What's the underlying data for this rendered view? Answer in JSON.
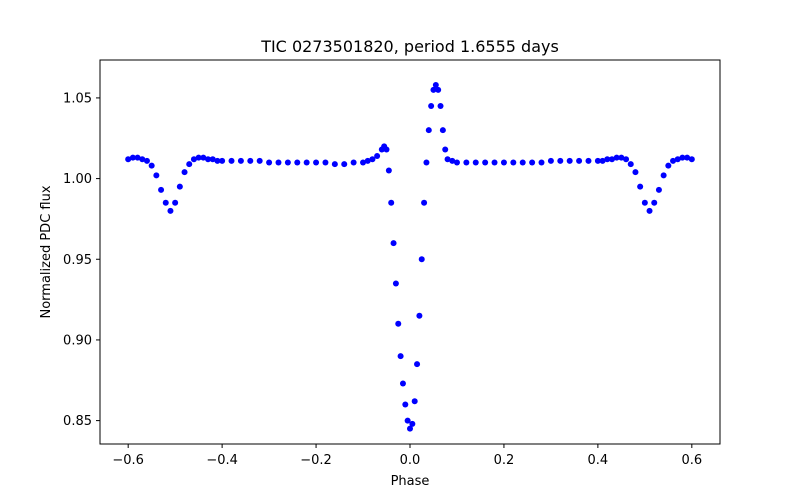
{
  "chart_data": {
    "type": "scatter",
    "title": "TIC 0273501820, period 1.6555 days",
    "xlabel": "Phase",
    "ylabel": "Normalized PDC flux",
    "xlim": [
      -0.66,
      0.66
    ],
    "ylim": [
      0.8355,
      1.0735
    ],
    "x_ticks": [
      -0.6,
      -0.4,
      -0.2,
      0.0,
      0.2,
      0.4,
      0.6
    ],
    "x_tick_labels": [
      "−0.6",
      "−0.4",
      "−0.2",
      "0.0",
      "0.2",
      "0.4",
      "0.6"
    ],
    "y_ticks": [
      0.85,
      0.9,
      0.95,
      1.0,
      1.05
    ],
    "y_tick_labels": [
      "0.85",
      "0.90",
      "0.95",
      "1.00",
      "1.05"
    ],
    "grid": false,
    "marker_color": "#0000ff",
    "series": [
      {
        "x": [
          -0.6,
          -0.59,
          -0.58,
          -0.57,
          -0.56,
          -0.55,
          -0.54,
          -0.53,
          -0.52,
          -0.51,
          -0.5,
          -0.49,
          -0.48,
          -0.47,
          -0.46,
          -0.45,
          -0.44,
          -0.43,
          -0.42,
          -0.41,
          -0.4,
          -0.38,
          -0.36,
          -0.34,
          -0.32,
          -0.3,
          -0.28,
          -0.26,
          -0.24,
          -0.22,
          -0.2,
          -0.18,
          -0.16,
          -0.14,
          -0.12,
          -0.1,
          -0.09,
          -0.08,
          -0.07,
          -0.06,
          -0.055,
          -0.05,
          -0.045,
          -0.04,
          -0.035,
          -0.03,
          -0.025,
          -0.02,
          -0.015,
          -0.01,
          -0.005,
          0.0,
          0.005,
          0.01,
          0.015,
          0.02,
          0.025,
          0.03,
          0.035,
          0.04,
          0.045,
          0.05,
          0.055,
          0.06,
          0.065,
          0.07,
          0.075,
          0.08,
          0.09,
          0.1,
          0.12,
          0.14,
          0.16,
          0.18,
          0.2,
          0.22,
          0.24,
          0.26,
          0.28,
          0.3,
          0.32,
          0.34,
          0.36,
          0.38,
          0.4,
          0.41,
          0.42,
          0.43,
          0.44,
          0.45,
          0.46,
          0.47,
          0.48,
          0.49,
          0.5,
          0.51,
          0.52,
          0.53,
          0.54,
          0.55,
          0.56,
          0.57,
          0.58,
          0.59,
          0.6
        ],
        "y": [
          1.012,
          1.013,
          1.013,
          1.012,
          1.011,
          1.008,
          1.002,
          0.993,
          0.985,
          0.98,
          0.985,
          0.995,
          1.004,
          1.009,
          1.012,
          1.013,
          1.013,
          1.012,
          1.012,
          1.011,
          1.011,
          1.011,
          1.011,
          1.011,
          1.011,
          1.01,
          1.01,
          1.01,
          1.01,
          1.01,
          1.01,
          1.01,
          1.009,
          1.009,
          1.01,
          1.01,
          1.011,
          1.012,
          1.014,
          1.018,
          1.02,
          1.018,
          1.005,
          0.985,
          0.96,
          0.935,
          0.91,
          0.89,
          0.873,
          0.86,
          0.85,
          0.845,
          0.848,
          0.862,
          0.885,
          0.915,
          0.95,
          0.985,
          1.01,
          1.03,
          1.045,
          1.055,
          1.058,
          1.055,
          1.045,
          1.03,
          1.018,
          1.012,
          1.011,
          1.01,
          1.01,
          1.01,
          1.01,
          1.01,
          1.01,
          1.01,
          1.01,
          1.01,
          1.01,
          1.011,
          1.011,
          1.011,
          1.011,
          1.011,
          1.011,
          1.011,
          1.012,
          1.012,
          1.013,
          1.013,
          1.012,
          1.009,
          1.004,
          0.995,
          0.985,
          0.98,
          0.985,
          0.993,
          1.002,
          1.008,
          1.011,
          1.012,
          1.013,
          1.013,
          1.012
        ]
      }
    ]
  }
}
